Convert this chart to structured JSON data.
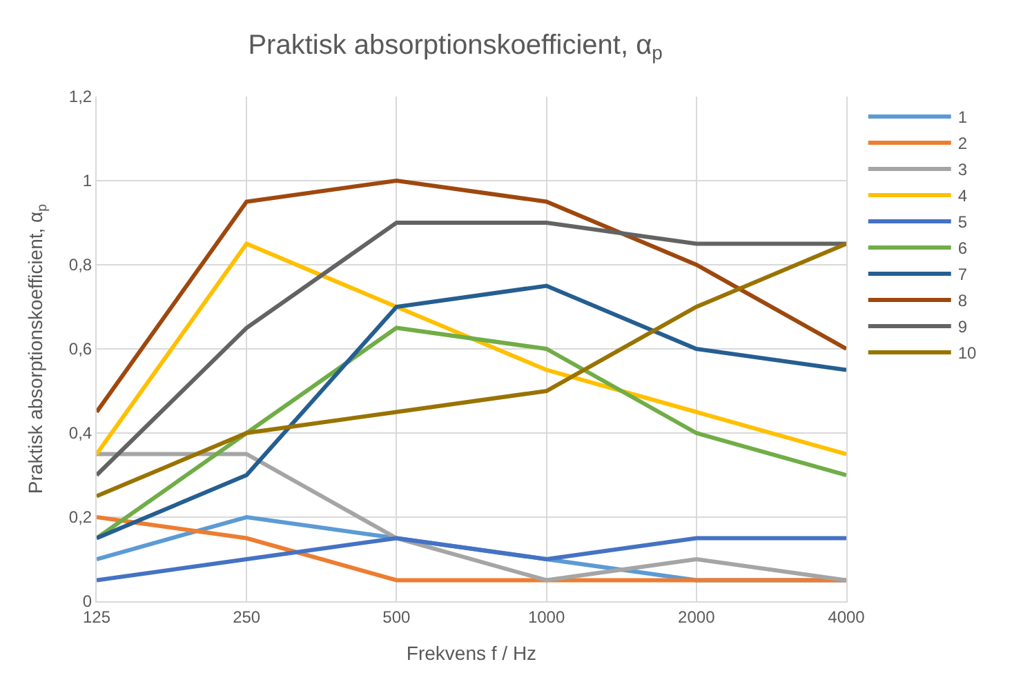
{
  "chart_data": {
    "type": "line",
    "title": "Praktisk absorptionskoefficient, α$_{p}$",
    "xlabel": "Frekvens f / Hz",
    "ylabel": "Praktisk absorptionskoefficient, α$_{p}$",
    "categories": [
      "125",
      "250",
      "500",
      "1000",
      "2000",
      "4000"
    ],
    "ylim": [
      0,
      1.2
    ],
    "yticks": [
      0,
      {
        "value": 0.2,
        "label": "0,2"
      },
      {
        "value": 0.4,
        "label": "0,4"
      },
      {
        "value": 0.6,
        "label": "0,6"
      },
      {
        "value": 0.8,
        "label": "0,8"
      },
      1,
      {
        "value": 1.2,
        "label": "1,2"
      }
    ],
    "grid": true,
    "legend": "right",
    "marker": "none",
    "line_style": "solid",
    "series": [
      {
        "name": "1",
        "color": "#5b9bd5",
        "values": [
          0.1,
          0.2,
          0.15,
          0.1,
          0.05,
          0.05
        ]
      },
      {
        "name": "2",
        "color": "#ed7d31",
        "values": [
          0.2,
          0.15,
          0.05,
          0.05,
          0.05,
          0.05
        ]
      },
      {
        "name": "3",
        "color": "#a5a5a5",
        "values": [
          0.35,
          0.35,
          0.15,
          0.05,
          0.1,
          0.05
        ]
      },
      {
        "name": "4",
        "color": "#ffc000",
        "values": [
          0.35,
          0.85,
          0.7,
          0.55,
          0.45,
          0.35
        ]
      },
      {
        "name": "5",
        "color": "#4472c4",
        "values": [
          0.05,
          0.1,
          0.15,
          0.1,
          0.15,
          0.15
        ]
      },
      {
        "name": "6",
        "color": "#70ad47",
        "values": [
          0.15,
          0.4,
          0.65,
          0.6,
          0.4,
          0.3
        ]
      },
      {
        "name": "7",
        "color": "#255e91",
        "values": [
          0.15,
          0.3,
          0.7,
          0.75,
          0.6,
          0.55
        ]
      },
      {
        "name": "8",
        "color": "#9e480e",
        "values": [
          0.45,
          0.95,
          1,
          0.95,
          0.8,
          0.6
        ]
      },
      {
        "name": "9",
        "color": "#636363",
        "values": [
          0.3,
          0.65,
          0.9,
          0.9,
          0.85,
          0.85
        ]
      },
      {
        "name": "10",
        "color": "#997300",
        "values": [
          0.25,
          0.4,
          0.45,
          0.5,
          0.7,
          0.85
        ]
      }
    ]
  }
}
